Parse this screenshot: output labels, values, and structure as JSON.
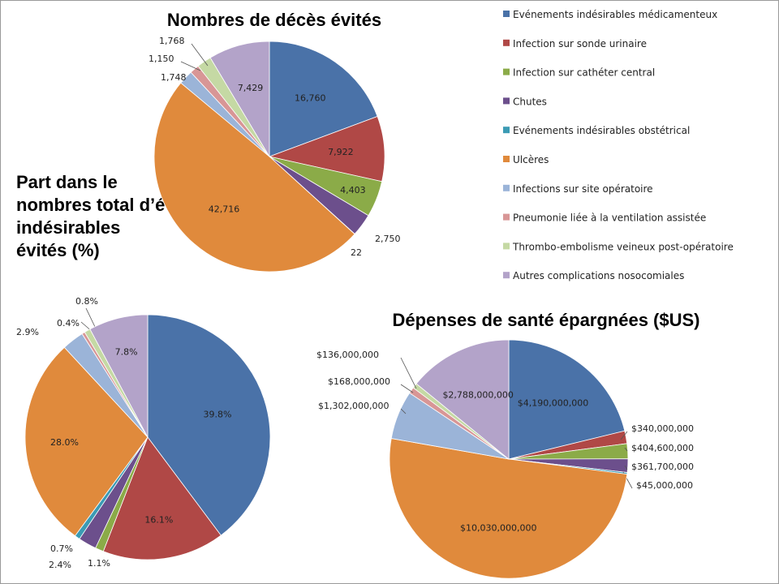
{
  "colors": [
    "#4a72a8",
    "#b04846",
    "#8bab48",
    "#6c4f8c",
    "#3b9bb4",
    "#e08a3c",
    "#9bb4d8",
    "#d89696",
    "#c5d9a4",
    "#b3a3c9"
  ],
  "legend": [
    "Evénements indésirables médicamenteux",
    "Infection sur sonde urinaire",
    "Infection sur cathéter central",
    "Chutes",
    "Evénements indésirables obstétrical",
    "Ulcères",
    "Infections sur site opératoire",
    "Pneumonie liée à la ventilation assistée",
    "Thrombo-embolisme veineux post-opératoire",
    "Autres complications nosocomiales"
  ],
  "chart_data": [
    {
      "type": "pie",
      "title": "Nombres de décès évités",
      "categories": [
        "Evénements indésirables médicamenteux",
        "Infection sur sonde urinaire",
        "Infection sur cathéter central",
        "Chutes",
        "Evénements indésirables obstétrical",
        "Ulcères",
        "Infections sur site opératoire",
        "Pneumonie liée à la ventilation assistée",
        "Thrombo-embolisme veineux post-opératoire",
        "Autres complications nosocomiales"
      ],
      "values": [
        16760,
        7922,
        4403,
        2750,
        22,
        42716,
        1748,
        1150,
        1768,
        7429
      ],
      "labels": [
        "16,760",
        "7,922",
        "4,403",
        "2,750",
        "22",
        "42,716",
        "1,748",
        "1,150",
        "1,768",
        "7,429"
      ]
    },
    {
      "type": "pie",
      "title": "Part dans le nombres total d’événements indésirables évités (%)",
      "categories": [
        "Evénements indésirables médicamenteux",
        "Infection sur sonde urinaire",
        "Infection sur cathéter central",
        "Chutes",
        "Evénements indésirables obstétrical",
        "Ulcères",
        "Infections sur site opératoire",
        "Pneumonie liée à la ventilation assistée",
        "Thrombo-embolisme veineux post-opératoire",
        "Autres complications nosocomiales"
      ],
      "values": [
        39.8,
        16.1,
        1.1,
        2.4,
        0.7,
        28.0,
        2.9,
        0.4,
        0.8,
        7.8
      ],
      "labels": [
        "39.8%",
        "16.1%",
        "1.1%",
        "2.4%",
        "0.7%",
        "28.0%",
        "2.9%",
        "0.4%",
        "0.8%",
        "7.8%"
      ]
    },
    {
      "type": "pie",
      "title": "Dépenses de santé épargnées ($US)",
      "categories": [
        "Evénements indésirables médicamenteux",
        "Infection sur sonde urinaire",
        "Infection sur cathéter central",
        "Chutes",
        "Evénements indésirables obstétrical",
        "Ulcères",
        "Infections sur site opératoire",
        "Pneumonie liée à la ventilation assistée",
        "Thrombo-embolisme veineux post-opératoire",
        "Autres complications nosocomiales"
      ],
      "values": [
        4190000000,
        340000000,
        404600000,
        361700000,
        45000000,
        10030000000,
        1302000000,
        168000000,
        136000000,
        2788000000
      ],
      "labels": [
        "$4,190,000,000",
        "$340,000,000",
        "$404,600,000",
        "$361,700,000",
        "$45,000,000",
        "$10,030,000,000",
        "$1,302,000,000",
        "$168,000,000",
        "$136,000,000",
        "$2,788,000,000"
      ]
    }
  ]
}
